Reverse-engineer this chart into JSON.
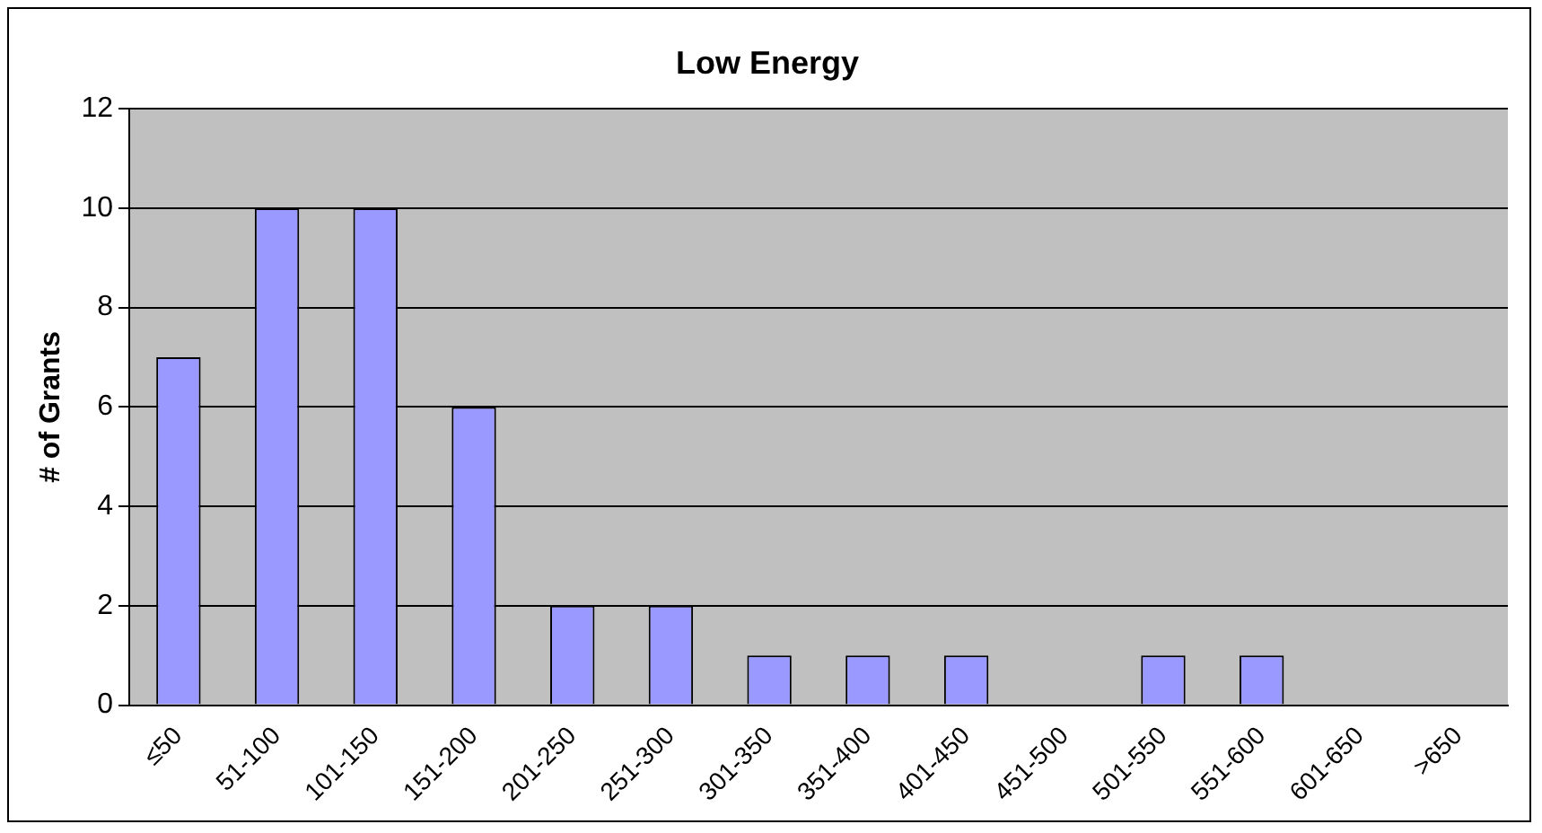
{
  "chart_data": {
    "type": "bar",
    "title": "Low Energy",
    "ylabel": "# of Grants",
    "categories": [
      "≤50",
      "51-100",
      "101-150",
      "151-200",
      "201-250",
      "251-300",
      "301-350",
      "351-400",
      "401-450",
      "451-500",
      "501-550",
      "551-600",
      "601-650",
      ">650"
    ],
    "values": [
      7,
      10,
      10,
      6,
      2,
      2,
      1,
      1,
      1,
      0,
      1,
      1,
      0,
      0
    ],
    "color": "#9999ff",
    "ylim": [
      0,
      12
    ],
    "yticks": [
      0,
      2,
      4,
      6,
      8,
      10,
      12
    ],
    "grid": "y",
    "legend": false
  }
}
